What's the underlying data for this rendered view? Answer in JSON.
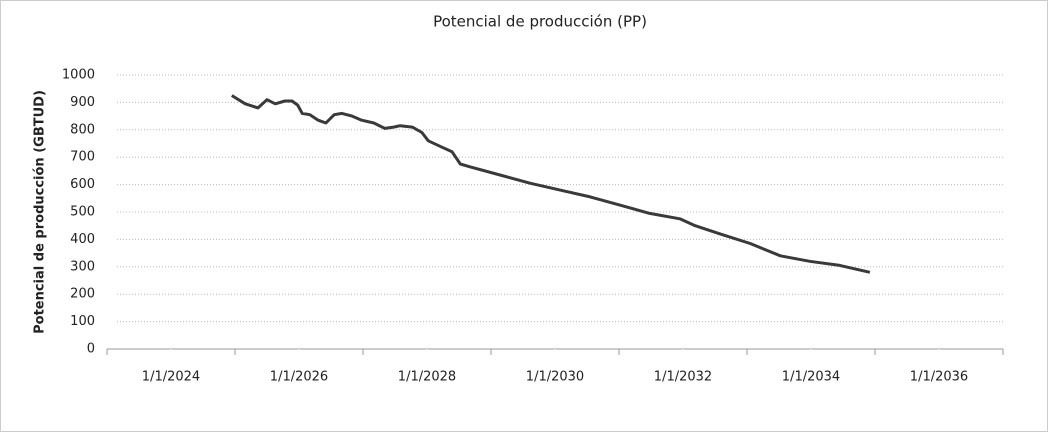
{
  "chart_data": {
    "type": "line",
    "title": "Potencial de producción (PP)",
    "y_label": "Potencial de producción (GBTUD)",
    "xlim": [
      2023,
      2037
    ],
    "xticks": [
      {
        "value": 2024,
        "label": "1/1/2024"
      },
      {
        "value": 2026,
        "label": "1/1/2026"
      },
      {
        "value": 2028,
        "label": "1/1/2028"
      },
      {
        "value": 2030,
        "label": "1/1/2030"
      },
      {
        "value": 2032,
        "label": "1/1/2032"
      },
      {
        "value": 2034,
        "label": "1/1/2034"
      },
      {
        "value": 2036,
        "label": "1/1/2036"
      }
    ],
    "ylim": [
      0,
      1000
    ],
    "yticks": [
      0,
      100,
      200,
      300,
      400,
      500,
      600,
      700,
      800,
      900,
      1000
    ],
    "grid": true,
    "series": [
      {
        "color": "#3a3a3a",
        "x": [
          2024.95,
          2025.16,
          2025.36,
          2025.5,
          2025.63,
          2025.78,
          2025.89,
          2025.98,
          2026.05,
          2026.17,
          2026.3,
          2026.42,
          2026.55,
          2026.67,
          2026.83,
          2026.98,
          2027.17,
          2027.34,
          2027.48,
          2027.58,
          2027.77,
          2027.92,
          2028.02,
          2028.2,
          2028.39,
          2028.52,
          2028.67,
          2029.14,
          2029.61,
          2030.08,
          2030.55,
          2031.02,
          2031.48,
          2031.95,
          2032.19,
          2032.58,
          2033.05,
          2033.52,
          2033.98,
          2034.45,
          2034.92
        ],
        "values": [
          925,
          895,
          880,
          910,
          895,
          905,
          905,
          890,
          860,
          855,
          835,
          825,
          855,
          860,
          850,
          835,
          825,
          805,
          810,
          815,
          810,
          790,
          760,
          740,
          720,
          675,
          665,
          635,
          605,
          580,
          555,
          525,
          495,
          475,
          450,
          420,
          385,
          340,
          320,
          305,
          280
        ]
      }
    ]
  }
}
